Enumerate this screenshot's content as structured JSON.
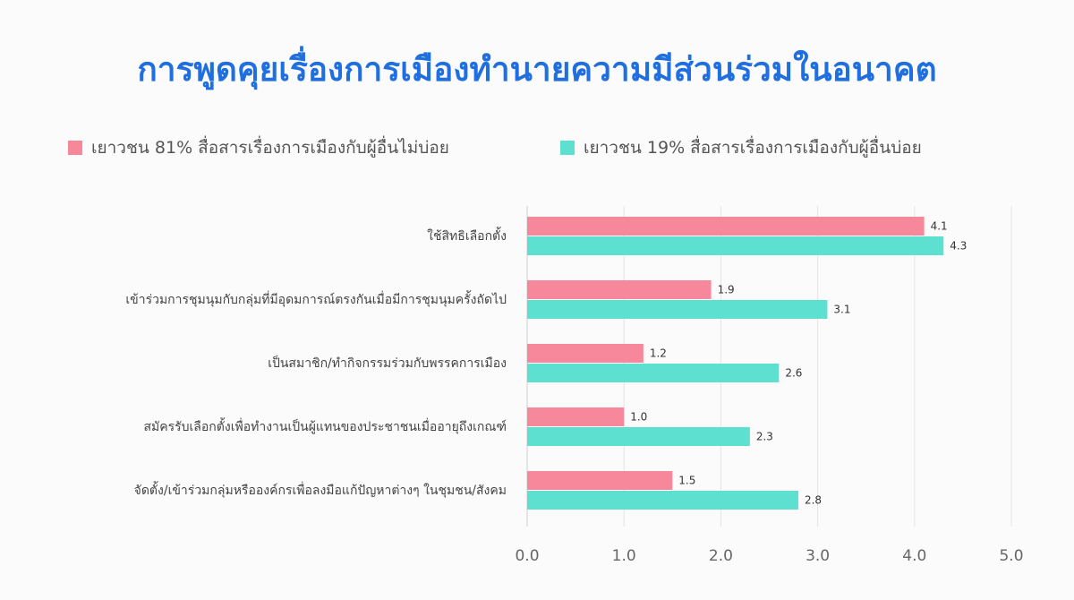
{
  "chart_data": {
    "type": "bar",
    "orientation": "horizontal",
    "title": "การพูดคุยเรื่องการเมืองทำนายความมีส่วนร่วมในอนาคต",
    "categories": [
      "ใช้สิทธิเลือกตั้ง",
      "เข้าร่วมการชุมนุมกับกลุ่มที่มีอุดมการณ์ตรงกันเมื่อมีการชุมนุมครั้งถัดไป",
      "เป็นสมาชิก/ทำกิจกรรมร่วมกับพรรคการเมือง",
      "สมัครรับเลือกตั้งเพื่อทำงานเป็นผู้แทนของประชาชนเมื่ออายุถึงเกณฑ์",
      "จัดตั้ง/เข้าร่วมกลุ่มหรือองค์กรเพื่อลงมือแก้ปัญหาต่างๆ ในชุมชน/สังคม"
    ],
    "series": [
      {
        "name": "เยาวชน 81% สื่อสารเรื่องการเมืองกับผู้อื่นไม่บ่อย",
        "color": "#f7879a",
        "values": [
          4.1,
          1.9,
          1.2,
          1.0,
          1.5
        ]
      },
      {
        "name": "เยาวชน 19% สื่อสารเรื่องการเมืองกับผู้อื่นบ่อย",
        "color": "#5ee0d0",
        "values": [
          4.3,
          3.1,
          2.6,
          2.3,
          2.8
        ]
      }
    ],
    "value_labels": [
      [
        "4.1",
        "1.9",
        "1.2",
        "1.0",
        "1.5"
      ],
      [
        "4.3",
        "3.1",
        "2.6",
        "2.3",
        "2.8"
      ]
    ],
    "xlim": [
      0,
      5
    ],
    "xticks": [
      "0.0",
      "1.0",
      "2.0",
      "3.0",
      "4.0",
      "5.0"
    ],
    "grid": true,
    "legend_position": "top"
  }
}
